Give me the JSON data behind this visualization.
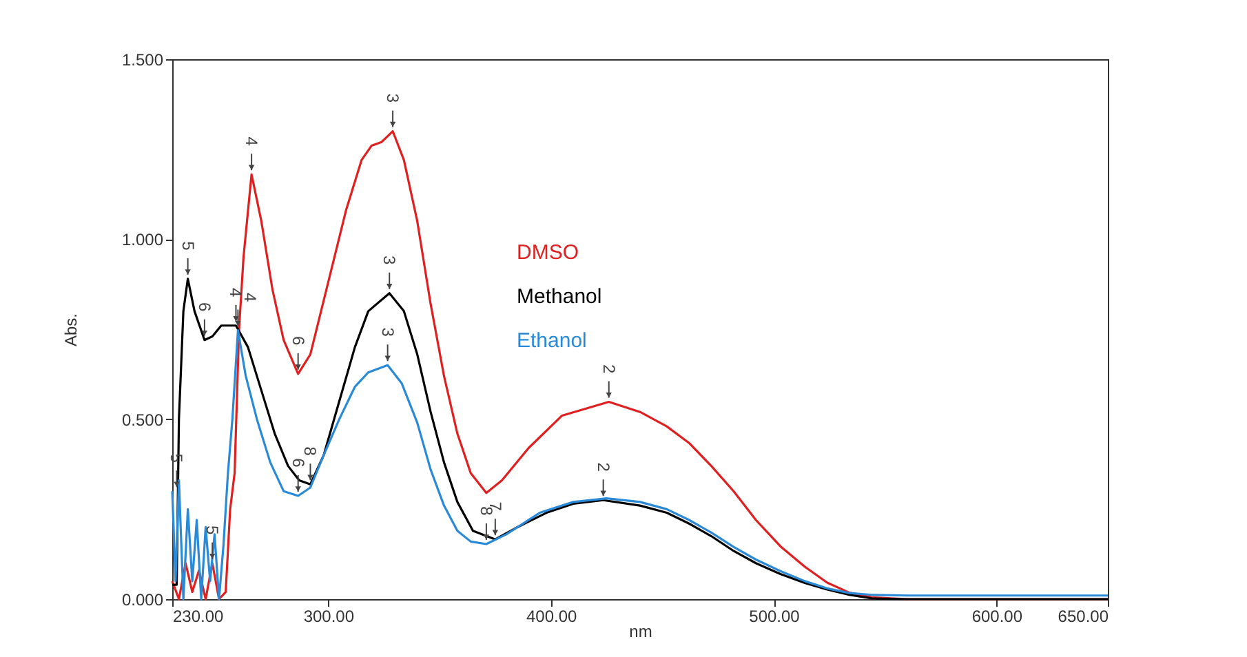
{
  "chart_data": {
    "type": "line",
    "xlabel": "nm",
    "ylabel": "Abs.",
    "xlim": [
      230,
      650
    ],
    "ylim": [
      0,
      1.5
    ],
    "xticks": [
      {
        "value": 230,
        "label": "230.00"
      },
      {
        "value": 300,
        "label": "300.00"
      },
      {
        "value": 400,
        "label": "400.00"
      },
      {
        "value": 500,
        "label": "500.00"
      },
      {
        "value": 600,
        "label": "600.00"
      },
      {
        "value": 650,
        "label": "650.00"
      }
    ],
    "yticks": [
      {
        "value": 0,
        "label": "0.000"
      },
      {
        "value": 0.5,
        "label": "0.500"
      },
      {
        "value": 1.0,
        "label": "1.000"
      },
      {
        "value": 1.5,
        "label": "1.500"
      }
    ],
    "grid": false,
    "legend": "top",
    "line_style": "solid",
    "marker": "none",
    "series": [
      {
        "name": "DMSO",
        "color": "#e02020",
        "x": [
          230,
          233,
          236,
          239,
          242,
          245,
          248,
          251,
          254,
          256,
          258,
          260,
          262,
          265.6,
          270,
          275,
          280,
          286.5,
          292,
          300,
          308,
          315,
          319.5,
          324,
          329,
          334,
          340,
          346,
          352,
          358,
          364,
          371,
          378,
          390,
          405,
          426,
          440,
          452,
          462,
          472,
          482,
          492,
          503,
          514,
          524,
          534,
          544,
          560,
          600,
          650
        ],
        "values": [
          0.05,
          0.0,
          0.1,
          0.02,
          0.08,
          0.0,
          0.1,
          0.0,
          0.02,
          0.25,
          0.35,
          0.75,
          0.95,
          1.18,
          1.05,
          0.86,
          0.72,
          0.626,
          0.68,
          0.88,
          1.08,
          1.22,
          1.26,
          1.27,
          1.3,
          1.22,
          1.05,
          0.82,
          0.62,
          0.46,
          0.35,
          0.295,
          0.33,
          0.42,
          0.51,
          0.548,
          0.52,
          0.48,
          0.434,
          0.37,
          0.3,
          0.22,
          0.147,
          0.09,
          0.046,
          0.018,
          0.005,
          0.0,
          0.0,
          0.0
        ]
      },
      {
        "name": "Methanol",
        "color": "#000000",
        "x": [
          230,
          232,
          233,
          235,
          237,
          240,
          244.5,
          248,
          252,
          258.6,
          264,
          270,
          276,
          282,
          287,
          292,
          298,
          305,
          312,
          318,
          327.5,
          334,
          340,
          346,
          352,
          358,
          365,
          375,
          385,
          398,
          410,
          423.5,
          440,
          452,
          462,
          472,
          482,
          492,
          503,
          514,
          524,
          534,
          544,
          560,
          650
        ],
        "values": [
          0.04,
          0.04,
          0.5,
          0.8,
          0.89,
          0.8,
          0.72,
          0.73,
          0.76,
          0.76,
          0.7,
          0.58,
          0.46,
          0.37,
          0.33,
          0.319,
          0.4,
          0.55,
          0.7,
          0.8,
          0.85,
          0.8,
          0.68,
          0.52,
          0.38,
          0.27,
          0.19,
          0.166,
          0.2,
          0.24,
          0.265,
          0.275,
          0.26,
          0.24,
          0.21,
          0.175,
          0.134,
          0.1,
          0.07,
          0.045,
          0.027,
          0.012,
          0.002,
          0.0,
          0.0
        ]
      },
      {
        "name": "Ethanol",
        "color": "#2a8ad8",
        "x": [
          230,
          231.5,
          233,
          235,
          237,
          239,
          241,
          243,
          245,
          247,
          249,
          251,
          253,
          255,
          257,
          259.5,
          263,
          268,
          274,
          280,
          286.5,
          292,
          298,
          305,
          312,
          318,
          326.7,
          333,
          340,
          346,
          352,
          358,
          364,
          371,
          380,
          395,
          410,
          425,
          440,
          452,
          462,
          472,
          482,
          492,
          503,
          514,
          524,
          534,
          544,
          560,
          600,
          650
        ],
        "values": [
          0.3,
          0.05,
          0.33,
          0.0,
          0.25,
          0.05,
          0.22,
          0.0,
          0.2,
          0.05,
          0.18,
          0.0,
          0.15,
          0.35,
          0.5,
          0.747,
          0.62,
          0.5,
          0.38,
          0.3,
          0.287,
          0.31,
          0.4,
          0.5,
          0.59,
          0.63,
          0.65,
          0.6,
          0.49,
          0.36,
          0.26,
          0.19,
          0.16,
          0.153,
          0.18,
          0.24,
          0.27,
          0.28,
          0.27,
          0.25,
          0.22,
          0.185,
          0.145,
          0.11,
          0.078,
          0.05,
          0.03,
          0.017,
          0.012,
          0.01,
          0.01,
          0.01
        ]
      }
    ],
    "annotations": [
      {
        "text": "5",
        "x": 248,
        "y": 0.1
      },
      {
        "text": "4",
        "x": 265.6,
        "y": 1.18
      },
      {
        "text": "6",
        "x": 286.5,
        "y": 0.626
      },
      {
        "text": "3",
        "x": 329,
        "y": 1.3
      },
      {
        "text": "2",
        "x": 426,
        "y": 0.548
      },
      {
        "text": "5",
        "x": 237,
        "y": 0.89
      },
      {
        "text": "6",
        "x": 244.5,
        "y": 0.72
      },
      {
        "text": "4",
        "x": 258.6,
        "y": 0.76
      },
      {
        "text": "8",
        "x": 292,
        "y": 0.319
      },
      {
        "text": "3",
        "x": 327.5,
        "y": 0.85
      },
      {
        "text": "7",
        "x": 375,
        "y": 0.166
      },
      {
        "text": "2",
        "x": 423.5,
        "y": 0.275
      },
      {
        "text": "5",
        "x": 232,
        "y": 0.3
      },
      {
        "text": "4",
        "x": 259.5,
        "y": 0.747
      },
      {
        "text": "6",
        "x": 286.5,
        "y": 0.287
      },
      {
        "text": "3",
        "x": 326.7,
        "y": 0.65
      },
      {
        "text": "8",
        "x": 371,
        "y": 0.153
      }
    ]
  }
}
